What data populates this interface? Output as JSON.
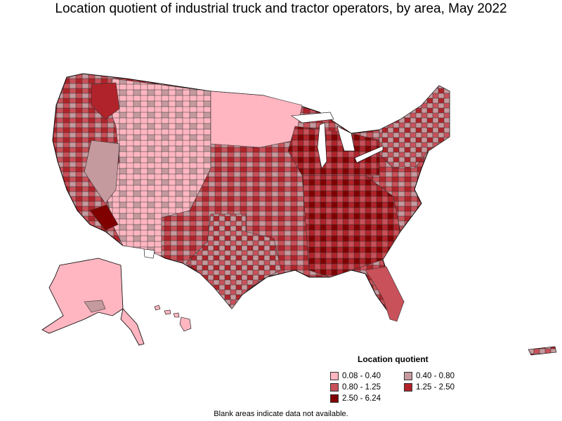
{
  "title": "Location quotient of industrial truck and tractor operators, by area, May 2022",
  "legend": {
    "title": "Location quotient",
    "items": [
      {
        "label": "0.08 - 0.40",
        "color": "#ffb6c1"
      },
      {
        "label": "0.40 - 0.80",
        "color": "#c49a9e"
      },
      {
        "label": "0.80 - 1.25",
        "color": "#c8515a"
      },
      {
        "label": "1.25 - 2.50",
        "color": "#b0232a"
      },
      {
        "label": "2.50 - 6.24",
        "color": "#800000"
      }
    ]
  },
  "note": "Blank areas indicate data not available."
}
